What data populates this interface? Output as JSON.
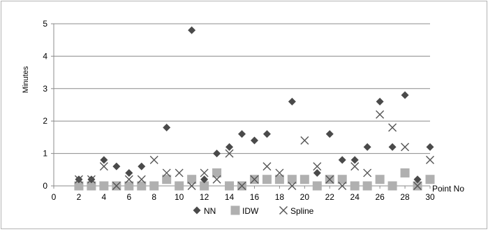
{
  "chart_data": {
    "type": "scatter",
    "xlabel": "Point No",
    "ylabel": "Minutes",
    "xlim": [
      0,
      30
    ],
    "ylim": [
      0,
      5
    ],
    "x_ticks": [
      "0",
      "2",
      "4",
      "6",
      "8",
      "10",
      "12",
      "14",
      "16",
      "18",
      "20",
      "22",
      "24",
      "26",
      "28",
      "30"
    ],
    "y_ticks": [
      "0",
      "1",
      "2",
      "3",
      "4",
      "5"
    ],
    "grid": "horizontal",
    "legend_position": "bottom",
    "series": [
      {
        "name": "NN",
        "marker": "diamond",
        "color": "#4a4a4a",
        "points": [
          [
            2,
            0.2
          ],
          [
            3,
            0.2
          ],
          [
            4,
            0.8
          ],
          [
            5,
            0.6
          ],
          [
            6,
            0.4
          ],
          [
            7,
            0.6
          ],
          [
            9,
            1.8
          ],
          [
            11,
            4.8
          ],
          [
            12,
            0.2
          ],
          [
            13,
            1.0
          ],
          [
            14,
            1.2
          ],
          [
            15,
            1.6
          ],
          [
            16,
            1.4
          ],
          [
            17,
            1.6
          ],
          [
            19,
            2.6
          ],
          [
            21,
            0.4
          ],
          [
            22,
            1.6
          ],
          [
            23,
            0.8
          ],
          [
            24,
            0.8
          ],
          [
            25,
            1.2
          ],
          [
            26,
            2.6
          ],
          [
            27,
            1.2
          ],
          [
            28,
            2.8
          ],
          [
            29,
            0.2
          ],
          [
            30,
            1.2
          ]
        ]
      },
      {
        "name": "IDW",
        "marker": "square",
        "color": "#b0b0b0",
        "points": [
          [
            2,
            0.0
          ],
          [
            3,
            0.0
          ],
          [
            4,
            0.0
          ],
          [
            5,
            0.0
          ],
          [
            6,
            0.0
          ],
          [
            7,
            0.0
          ],
          [
            8,
            0.0
          ],
          [
            9,
            0.2
          ],
          [
            10,
            0.0
          ],
          [
            11,
            0.2
          ],
          [
            12,
            0.0
          ],
          [
            13,
            0.4
          ],
          [
            14,
            0.0
          ],
          [
            15,
            0.0
          ],
          [
            16,
            0.2
          ],
          [
            17,
            0.2
          ],
          [
            18,
            0.2
          ],
          [
            19,
            0.2
          ],
          [
            20,
            0.2
          ],
          [
            21,
            0.0
          ],
          [
            22,
            0.2
          ],
          [
            23,
            0.2
          ],
          [
            24,
            0.0
          ],
          [
            25,
            0.0
          ],
          [
            26,
            0.2
          ],
          [
            27,
            0.0
          ],
          [
            28,
            0.4
          ],
          [
            29,
            0.0
          ],
          [
            30,
            0.2
          ]
        ]
      },
      {
        "name": "Spline",
        "marker": "x",
        "color": "#555555",
        "points": [
          [
            2,
            0.2
          ],
          [
            3,
            0.2
          ],
          [
            4,
            0.6
          ],
          [
            5,
            0.0
          ],
          [
            6,
            0.2
          ],
          [
            7,
            0.2
          ],
          [
            8,
            0.8
          ],
          [
            9,
            0.4
          ],
          [
            10,
            0.4
          ],
          [
            11,
            0.0
          ],
          [
            12,
            0.4
          ],
          [
            13,
            0.2
          ],
          [
            14,
            1.0
          ],
          [
            15,
            0.0
          ],
          [
            16,
            0.2
          ],
          [
            17,
            0.6
          ],
          [
            18,
            0.4
          ],
          [
            19,
            0.0
          ],
          [
            20,
            1.4
          ],
          [
            21,
            0.6
          ],
          [
            22,
            0.2
          ],
          [
            23,
            0.0
          ],
          [
            24,
            0.6
          ],
          [
            25,
            0.4
          ],
          [
            26,
            2.2
          ],
          [
            27,
            1.8
          ],
          [
            28,
            1.2
          ],
          [
            29,
            0.0
          ],
          [
            30,
            0.8
          ]
        ]
      }
    ]
  }
}
